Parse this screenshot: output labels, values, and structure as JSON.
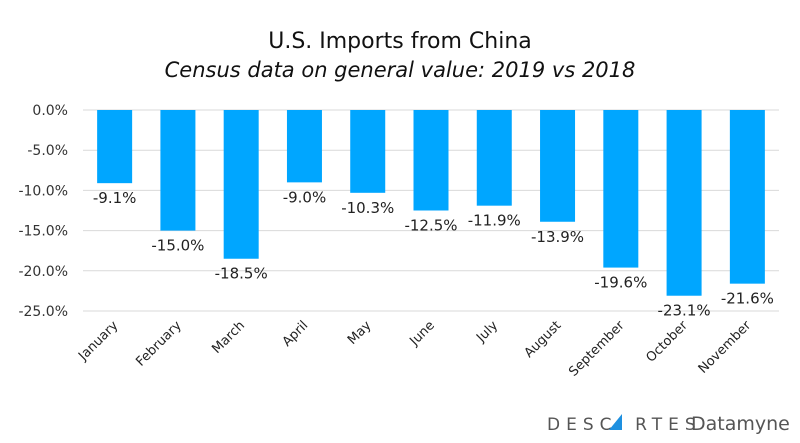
{
  "chart_data": {
    "type": "bar",
    "title": "U.S. Imports from China",
    "subtitle": "Census data on general value: 2019 vs 2018",
    "categories": [
      "January",
      "February",
      "March",
      "April",
      "May",
      "June",
      "July",
      "August",
      "September",
      "October",
      "November"
    ],
    "values": [
      -9.1,
      -15.0,
      -18.5,
      -9.0,
      -10.3,
      -12.5,
      -11.9,
      -13.9,
      -19.6,
      -23.1,
      -21.6
    ],
    "data_labels": [
      "-9.1%",
      "-15.0%",
      "-18.5%",
      "-9.0%",
      "-10.3%",
      "-12.5%",
      "-11.9%",
      "-13.9%",
      "-19.6%",
      "-23.1%",
      "-21.6%"
    ],
    "yticks": [
      0,
      -5,
      -10,
      -15,
      -20,
      -25
    ],
    "ytick_labels": [
      "0.0%",
      "-5.0%",
      "-10.0%",
      "-15.0%",
      "-20.0%",
      "-25.0%"
    ],
    "ylim": [
      -25,
      0
    ],
    "xlabel": "",
    "ylabel": "",
    "grid": true,
    "bar_color": "#00A6FF"
  },
  "branding": {
    "logo_text_1": "DESCARTES",
    "logo_text_2": "Datamyne",
    "logo_accent": "#1E90E0"
  }
}
